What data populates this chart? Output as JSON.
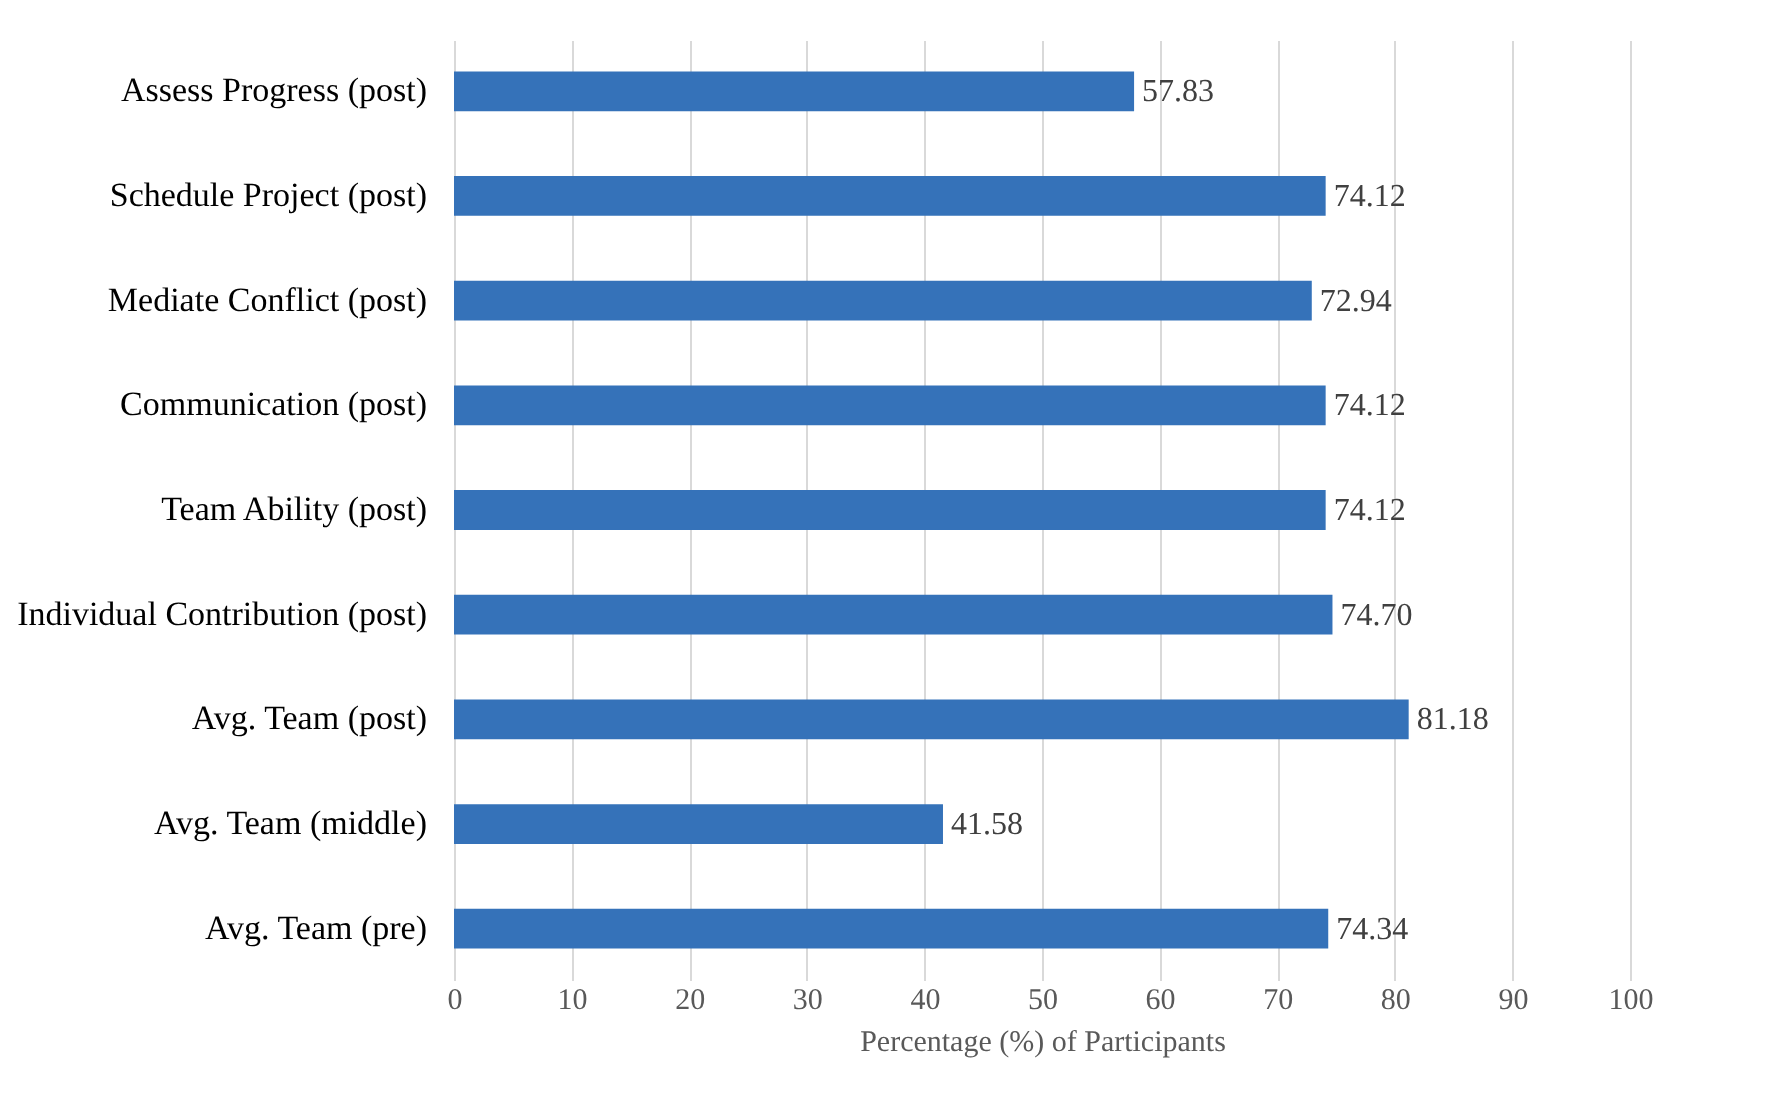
{
  "chart_data": {
    "type": "bar",
    "orientation": "horizontal",
    "xlabel": "Percentage  (%) of Participants",
    "categories": [
      "Assess Progress (post)",
      "Schedule Project (post)",
      "Mediate Conflict (post)",
      "Communication (post)",
      "Team Ability (post)",
      "Individual Contribution (post)",
      "Avg. Team (post)",
      "Avg. Team (middle)",
      "Avg. Team (pre)"
    ],
    "values": [
      57.83,
      74.12,
      72.94,
      74.12,
      74.12,
      74.7,
      81.18,
      41.58,
      74.34
    ],
    "value_labels": [
      "57.83",
      "74.12",
      "72.94",
      "74.12",
      "74.12",
      "74.70",
      "81.18",
      "41.58",
      "74.34"
    ],
    "color": "#3572b9",
    "xlim": [
      0,
      100
    ],
    "xticks": [
      0,
      10,
      20,
      30,
      40,
      50,
      60,
      70,
      80,
      90,
      100
    ],
    "grid": "x"
  }
}
